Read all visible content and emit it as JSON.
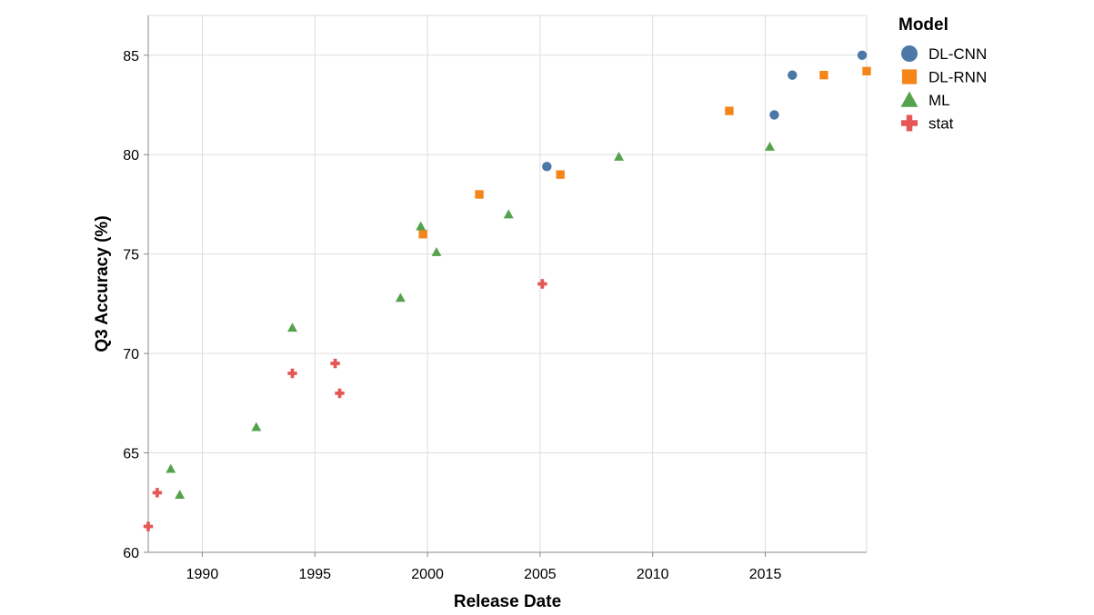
{
  "chart_data": {
    "type": "scatter",
    "xlabel": "Release Date",
    "ylabel": "Q3 Accuracy (%)",
    "xlim": [
      1987.6,
      2019.5
    ],
    "ylim": [
      60,
      87
    ],
    "x_ticks": [
      "1990",
      "1995",
      "2000",
      "2005",
      "2010",
      "2015"
    ],
    "y_ticks": [
      "60",
      "65",
      "70",
      "75",
      "80",
      "85"
    ],
    "grid": true,
    "legend": {
      "title": "Model",
      "position": "right"
    },
    "series": [
      {
        "name": "DL-CNN",
        "color": "#4c78a8",
        "shape": "circle",
        "x": [
          2005.3,
          2015.4,
          2016.2,
          2019.3
        ],
        "y": [
          79.4,
          82.0,
          84.0,
          85.0
        ]
      },
      {
        "name": "DL-RNN",
        "color": "#f58518",
        "shape": "square",
        "x": [
          1999.8,
          2002.3,
          2005.9,
          2013.4,
          2017.6,
          2019.5
        ],
        "y": [
          76.0,
          78.0,
          79.0,
          82.2,
          84.0,
          84.2
        ]
      },
      {
        "name": "ML",
        "color": "#54a24b",
        "shape": "triangle",
        "x": [
          1988.6,
          1989.0,
          1992.4,
          1994.0,
          1998.8,
          1999.7,
          2000.4,
          2003.6,
          2008.5,
          2015.2
        ],
        "y": [
          64.2,
          62.9,
          66.3,
          71.3,
          72.8,
          76.4,
          75.1,
          77.0,
          79.9,
          80.4
        ]
      },
      {
        "name": "stat",
        "color": "#e45756",
        "shape": "cross",
        "x": [
          1987.6,
          1988.0,
          1994.0,
          1995.9,
          1996.1,
          2005.1
        ],
        "y": [
          61.3,
          63.0,
          69.0,
          69.5,
          68.0,
          73.5
        ]
      }
    ]
  }
}
